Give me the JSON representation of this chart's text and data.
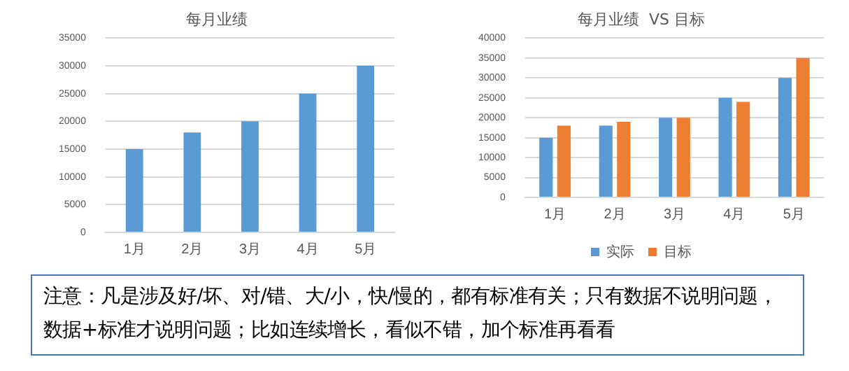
{
  "chart_data": [
    {
      "type": "bar",
      "title": "每月业绩",
      "categories": [
        "1月",
        "2月",
        "3月",
        "4月",
        "5月"
      ],
      "values": [
        15000,
        18000,
        20000,
        25000,
        30000
      ],
      "color": "#5b9bd5",
      "ylim": [
        0,
        35000
      ],
      "yticks": [
        0,
        5000,
        10000,
        15000,
        20000,
        25000,
        30000,
        35000
      ],
      "grid": "y",
      "legend": false
    },
    {
      "type": "bar",
      "title": "每月业绩  VS 目标",
      "categories": [
        "1月",
        "2月",
        "3月",
        "4月",
        "5月"
      ],
      "series": [
        {
          "name": "实际",
          "color": "#5b9bd5",
          "values": [
            15000,
            18000,
            20000,
            25000,
            30000
          ]
        },
        {
          "name": "目标",
          "color": "#ed7d31",
          "values": [
            18000,
            19000,
            20000,
            24000,
            35000
          ]
        }
      ],
      "ylim": [
        0,
        40000
      ],
      "yticks": [
        0,
        5000,
        10000,
        15000,
        20000,
        25000,
        30000,
        35000,
        40000
      ],
      "grid": "y",
      "legend": "bottom"
    },
    {
      "type": "other",
      "annotations": [
        "注意：凡是涉及好/坏、对/错、大/小，快/慢的，都有标准有关；只有数据不说明问题，数据+标准才说明问题；比如连续增长，看似不错，加个标准再看看"
      ]
    }
  ]
}
